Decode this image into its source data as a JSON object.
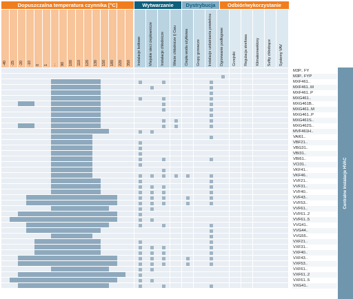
{
  "headers": {
    "temp": "Dopuszczalna temperatura czynnika [°C]",
    "wytwarzanie": "Wytwarzanie",
    "dystrybucja": "Dystrybucja",
    "odbior": "Odbiór/wykorzystanie"
  },
  "temp_columns": [
    "-40",
    "-25",
    "-20",
    "-10",
    "0",
    "1",
    "...",
    "90",
    "100",
    "110",
    "120",
    "130",
    "150",
    "180",
    "220",
    "350"
  ],
  "wytwarzanie_columns": [
    "Instalacje kotłowe",
    "Miejskie sieci ciepłownicze",
    "Instalacje chłodnicze",
    "Wieże chłodnicze i) Cwu",
    "Ciepła woda użytkowa"
  ],
  "dystrybucja_columns": [
    "Grupy grzewcze",
    "Instalacje uzdatniania powietrza",
    "Ogrzewanie podłogowe"
  ],
  "odbior_columns": [
    "Grzejniki",
    "Regulacja strefowa",
    "Klimakonwektory",
    "Sufity chłodzące",
    "Systemy VAV"
  ],
  "side_label": "Centralne instalacje HVAC",
  "rows": [
    {
      "name": "M3P.. FY",
      "t": [
        0,
        0,
        0,
        0,
        0,
        0,
        0,
        0,
        0,
        0,
        0,
        0,
        0,
        0,
        0,
        0
      ],
      "m": [
        0,
        0,
        0,
        0,
        0,
        0,
        0,
        0,
        0,
        0,
        0,
        0,
        0
      ]
    },
    {
      "name": "M3P.. FYP",
      "t": [
        0,
        0,
        0,
        0,
        0,
        0,
        0,
        0,
        0,
        0,
        0,
        0,
        0,
        0,
        0,
        0
      ],
      "m": [
        0,
        0,
        0,
        0,
        0,
        0,
        0,
        1,
        0,
        0,
        0,
        0,
        0
      ]
    },
    {
      "name": "MXF461..",
      "t": [
        0,
        0,
        0,
        0,
        0,
        0,
        1,
        1,
        1,
        1,
        1,
        1,
        0,
        0,
        0,
        0
      ],
      "m": [
        1,
        0,
        1,
        0,
        0,
        0,
        1,
        0,
        0,
        0,
        0,
        0,
        0
      ]
    },
    {
      "name": "MXF461..M",
      "t": [
        0,
        0,
        0,
        0,
        0,
        0,
        1,
        1,
        1,
        1,
        1,
        1,
        0,
        0,
        0,
        0
      ],
      "m": [
        0,
        1,
        0,
        0,
        0,
        0,
        1,
        0,
        0,
        0,
        0,
        0,
        0
      ]
    },
    {
      "name": "MXF461..P",
      "t": [
        0,
        0,
        0,
        0,
        0,
        0,
        1,
        1,
        1,
        1,
        1,
        1,
        0,
        0,
        0,
        0
      ],
      "m": [
        0,
        0,
        0,
        0,
        0,
        0,
        1,
        0,
        0,
        0,
        0,
        0,
        0
      ]
    },
    {
      "name": "MXG461..",
      "t": [
        0,
        0,
        0,
        0,
        0,
        0,
        1,
        1,
        1,
        1,
        1,
        1,
        0,
        0,
        0,
        0
      ],
      "m": [
        1,
        0,
        1,
        0,
        0,
        0,
        1,
        0,
        0,
        0,
        0,
        0,
        0
      ]
    },
    {
      "name": "MXG461B..",
      "t": [
        0,
        0,
        1,
        1,
        0,
        0,
        1,
        1,
        1,
        1,
        1,
        1,
        0,
        0,
        0,
        0
      ],
      "m": [
        0,
        0,
        1,
        0,
        0,
        0,
        1,
        0,
        0,
        0,
        0,
        0,
        0
      ]
    },
    {
      "name": "MXG461..M",
      "t": [
        0,
        0,
        0,
        0,
        0,
        0,
        1,
        1,
        1,
        1,
        1,
        1,
        0,
        0,
        0,
        0
      ],
      "m": [
        0,
        0,
        1,
        0,
        0,
        0,
        1,
        0,
        0,
        0,
        0,
        0,
        0
      ]
    },
    {
      "name": "MXG461..P",
      "t": [
        0,
        0,
        0,
        0,
        0,
        0,
        1,
        1,
        1,
        1,
        1,
        1,
        0,
        0,
        0,
        0
      ],
      "m": [
        0,
        0,
        0,
        0,
        0,
        0,
        1,
        0,
        0,
        0,
        0,
        0,
        0
      ]
    },
    {
      "name": "MXG461S..",
      "t": [
        0,
        0,
        0,
        0,
        0,
        0,
        1,
        1,
        1,
        1,
        1,
        1,
        0,
        0,
        0,
        0
      ],
      "m": [
        0,
        0,
        1,
        1,
        0,
        0,
        1,
        0,
        0,
        0,
        0,
        0,
        0
      ]
    },
    {
      "name": "MXG462S..",
      "t": [
        0,
        0,
        1,
        1,
        0,
        0,
        1,
        1,
        1,
        1,
        1,
        1,
        0,
        0,
        0,
        0
      ],
      "m": [
        0,
        0,
        1,
        1,
        0,
        0,
        1,
        0,
        0,
        0,
        0,
        0,
        0
      ]
    },
    {
      "name": "MVF461H..",
      "t": [
        0,
        0,
        0,
        0,
        0,
        0,
        1,
        1,
        1,
        1,
        1,
        1,
        1,
        0,
        0,
        0
      ],
      "m": [
        1,
        1,
        0,
        0,
        0,
        0,
        0,
        0,
        0,
        0,
        0,
        0,
        0
      ]
    },
    {
      "name": "VAI61..",
      "t": [
        0,
        0,
        0,
        0,
        0,
        0,
        1,
        1,
        1,
        1,
        1,
        0,
        0,
        0,
        0,
        0
      ],
      "m": [
        0,
        0,
        0,
        0,
        0,
        0,
        1,
        0,
        0,
        0,
        0,
        0,
        0
      ]
    },
    {
      "name": "VBF21..",
      "t": [
        0,
        0,
        0,
        0,
        0,
        0,
        1,
        1,
        1,
        1,
        1,
        0,
        0,
        0,
        0,
        0
      ],
      "m": [
        1,
        0,
        0,
        0,
        0,
        0,
        0,
        0,
        0,
        0,
        0,
        0,
        0
      ]
    },
    {
      "name": "VBG31..",
      "t": [
        0,
        0,
        0,
        0,
        0,
        0,
        1,
        1,
        1,
        1,
        1,
        0,
        0,
        0,
        0,
        0
      ],
      "m": [
        1,
        0,
        0,
        0,
        0,
        0,
        0,
        0,
        0,
        0,
        0,
        0,
        0
      ]
    },
    {
      "name": "VBI31..",
      "t": [
        0,
        0,
        0,
        0,
        0,
        0,
        1,
        1,
        1,
        1,
        1,
        0,
        0,
        0,
        0,
        0
      ],
      "m": [
        1,
        0,
        0,
        0,
        0,
        0,
        0,
        0,
        0,
        0,
        0,
        0,
        0
      ]
    },
    {
      "name": "VBI61..",
      "t": [
        0,
        0,
        0,
        0,
        0,
        0,
        1,
        1,
        1,
        1,
        1,
        0,
        0,
        0,
        0,
        0
      ],
      "m": [
        1,
        0,
        1,
        0,
        0,
        0,
        1,
        0,
        0,
        0,
        0,
        0,
        0
      ]
    },
    {
      "name": "VCI31..",
      "t": [
        0,
        0,
        0,
        0,
        0,
        0,
        1,
        1,
        1,
        1,
        1,
        0,
        0,
        0,
        0,
        0
      ],
      "m": [
        1,
        0,
        0,
        0,
        0,
        0,
        0,
        0,
        0,
        0,
        0,
        0,
        0
      ]
    },
    {
      "name": "VKF41..",
      "t": [
        0,
        0,
        0,
        0,
        0,
        0,
        1,
        1,
        1,
        1,
        1,
        0,
        0,
        0,
        0,
        0
      ],
      "m": [
        0,
        0,
        1,
        0,
        0,
        0,
        0,
        0,
        0,
        0,
        0,
        0,
        0
      ]
    },
    {
      "name": "VKF46..",
      "t": [
        0,
        0,
        0,
        0,
        0,
        0,
        1,
        1,
        1,
        1,
        1,
        0,
        0,
        0,
        0,
        0
      ],
      "m": [
        1,
        1,
        1,
        1,
        1,
        0,
        1,
        0,
        0,
        0,
        0,
        0,
        0
      ]
    },
    {
      "name": "VVF21..",
      "t": [
        0,
        0,
        0,
        0,
        0,
        0,
        1,
        1,
        1,
        1,
        1,
        1,
        0,
        0,
        0,
        0
      ],
      "m": [
        1,
        0,
        0,
        0,
        0,
        0,
        1,
        0,
        0,
        0,
        0,
        0,
        0
      ]
    },
    {
      "name": "VVF31..",
      "t": [
        0,
        0,
        0,
        0,
        0,
        0,
        1,
        1,
        1,
        1,
        1,
        1,
        0,
        0,
        0,
        0
      ],
      "m": [
        1,
        1,
        1,
        0,
        0,
        0,
        1,
        0,
        0,
        0,
        0,
        0,
        0
      ]
    },
    {
      "name": "VVF40..",
      "t": [
        0,
        0,
        0,
        0,
        0,
        0,
        1,
        1,
        1,
        1,
        1,
        1,
        0,
        0,
        0,
        0
      ],
      "m": [
        1,
        1,
        1,
        0,
        0,
        0,
        1,
        0,
        0,
        0,
        0,
        0,
        0
      ]
    },
    {
      "name": "VVF43..",
      "t": [
        0,
        0,
        0,
        1,
        1,
        1,
        1,
        1,
        1,
        1,
        1,
        1,
        1,
        1,
        0,
        0
      ],
      "m": [
        1,
        1,
        1,
        0,
        1,
        0,
        1,
        0,
        0,
        0,
        0,
        0,
        0
      ]
    },
    {
      "name": "VVF53..",
      "t": [
        0,
        0,
        0,
        1,
        1,
        1,
        1,
        1,
        1,
        1,
        1,
        1,
        1,
        1,
        0,
        0
      ],
      "m": [
        1,
        1,
        1,
        0,
        1,
        0,
        1,
        0,
        0,
        0,
        0,
        0,
        0
      ]
    },
    {
      "name": "VVF61..",
      "t": [
        0,
        0,
        0,
        0,
        0,
        0,
        1,
        1,
        1,
        1,
        1,
        1,
        1,
        0,
        0,
        0
      ],
      "m": [
        1,
        1,
        0,
        0,
        0,
        0,
        0,
        0,
        0,
        0,
        0,
        0,
        0
      ]
    },
    {
      "name": "VVF61..2",
      "t": [
        0,
        0,
        1,
        1,
        1,
        1,
        1,
        1,
        1,
        1,
        1,
        1,
        1,
        1,
        0,
        0
      ],
      "m": [
        1,
        0,
        0,
        0,
        0,
        0,
        0,
        0,
        0,
        0,
        0,
        0,
        0
      ]
    },
    {
      "name": "VVF61..5",
      "t": [
        0,
        1,
        1,
        1,
        1,
        1,
        1,
        1,
        1,
        1,
        1,
        1,
        1,
        1,
        0,
        0
      ],
      "m": [
        1,
        1,
        0,
        0,
        0,
        0,
        0,
        0,
        0,
        0,
        0,
        0,
        0
      ]
    },
    {
      "name": "VVG41..",
      "t": [
        0,
        0,
        0,
        1,
        1,
        1,
        1,
        1,
        1,
        1,
        1,
        1,
        1,
        0,
        0,
        0
      ],
      "m": [
        1,
        0,
        1,
        0,
        0,
        0,
        1,
        0,
        0,
        0,
        0,
        0,
        0
      ]
    },
    {
      "name": "VVG44..",
      "t": [
        0,
        0,
        0,
        1,
        1,
        1,
        1,
        1,
        1,
        1,
        1,
        1,
        0,
        0,
        0,
        0
      ],
      "m": [
        0,
        0,
        0,
        0,
        0,
        0,
        1,
        0,
        0,
        0,
        0,
        0,
        0
      ]
    },
    {
      "name": "VVG55..",
      "t": [
        0,
        0,
        0,
        0,
        0,
        0,
        1,
        1,
        1,
        1,
        1,
        0,
        0,
        0,
        0,
        0
      ],
      "m": [
        0,
        0,
        0,
        0,
        0,
        0,
        1,
        0,
        0,
        0,
        0,
        0,
        0
      ]
    },
    {
      "name": "VXF21..",
      "t": [
        0,
        0,
        0,
        0,
        1,
        1,
        1,
        1,
        1,
        1,
        1,
        1,
        0,
        0,
        0,
        0
      ],
      "m": [
        1,
        0,
        0,
        0,
        0,
        0,
        1,
        0,
        0,
        0,
        0,
        0,
        0
      ]
    },
    {
      "name": "VXF31..",
      "t": [
        0,
        0,
        0,
        0,
        1,
        1,
        1,
        1,
        1,
        1,
        1,
        1,
        0,
        0,
        0,
        0
      ],
      "m": [
        1,
        1,
        1,
        0,
        0,
        0,
        1,
        0,
        0,
        0,
        0,
        0,
        0
      ]
    },
    {
      "name": "VXF40..",
      "t": [
        0,
        0,
        0,
        0,
        1,
        1,
        1,
        1,
        1,
        1,
        1,
        1,
        0,
        0,
        0,
        0
      ],
      "m": [
        1,
        1,
        1,
        0,
        0,
        0,
        1,
        0,
        0,
        0,
        0,
        0,
        0
      ]
    },
    {
      "name": "VXF43..",
      "t": [
        0,
        0,
        1,
        1,
        1,
        1,
        1,
        1,
        1,
        1,
        1,
        1,
        1,
        1,
        0,
        0
      ],
      "m": [
        1,
        1,
        1,
        0,
        1,
        0,
        1,
        0,
        0,
        0,
        0,
        0,
        0
      ]
    },
    {
      "name": "VXF53..",
      "t": [
        0,
        0,
        1,
        1,
        1,
        1,
        1,
        1,
        1,
        1,
        1,
        1,
        1,
        1,
        0,
        0
      ],
      "m": [
        1,
        1,
        1,
        0,
        1,
        0,
        1,
        0,
        0,
        0,
        0,
        0,
        0
      ]
    },
    {
      "name": "VXF61..",
      "t": [
        0,
        0,
        0,
        0,
        0,
        0,
        1,
        1,
        1,
        1,
        1,
        1,
        1,
        0,
        0,
        0
      ],
      "m": [
        1,
        1,
        0,
        0,
        0,
        0,
        0,
        0,
        0,
        0,
        0,
        0,
        0
      ]
    },
    {
      "name": "VXF61..2",
      "t": [
        0,
        0,
        1,
        1,
        1,
        1,
        1,
        1,
        1,
        1,
        1,
        1,
        1,
        1,
        1,
        0
      ],
      "m": [
        1,
        0,
        0,
        0,
        0,
        0,
        0,
        0,
        0,
        0,
        0,
        0,
        0
      ]
    },
    {
      "name": "VXF61..5",
      "t": [
        0,
        1,
        1,
        1,
        1,
        1,
        1,
        1,
        1,
        1,
        1,
        1,
        1,
        1,
        0,
        0
      ],
      "m": [
        1,
        1,
        0,
        0,
        0,
        0,
        0,
        0,
        0,
        0,
        0,
        0,
        0
      ]
    },
    {
      "name": "VXG41..",
      "t": [
        0,
        0,
        1,
        1,
        1,
        1,
        1,
        1,
        1,
        1,
        1,
        1,
        1,
        0,
        0,
        0
      ],
      "m": [
        1,
        0,
        1,
        0,
        0,
        0,
        1,
        0,
        0,
        0,
        0,
        0,
        0
      ]
    }
  ],
  "colors": {
    "temp_header": "#f07e1e",
    "temp_sub": "#f8c49a",
    "wyt_header": "#0f5f7d",
    "dys_header": "#85aec6",
    "on": "#8ea9bd",
    "off": "#e8eef3",
    "side": "#6f96ad"
  }
}
